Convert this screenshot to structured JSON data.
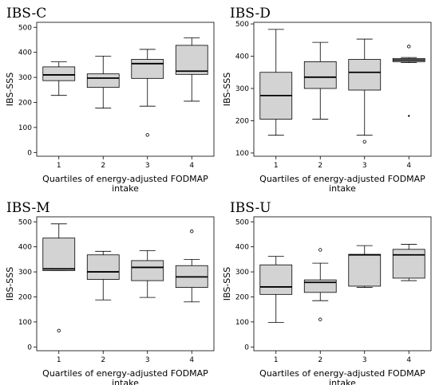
{
  "chart_data": [
    {
      "type": "box",
      "title": "IBS-C",
      "xlabel": "Quartiles of energy-adjusted FODMAP intake",
      "ylabel": "IBS-SSS",
      "ylim": [
        -15,
        520
      ],
      "yticks": [
        0,
        100,
        200,
        300,
        400,
        500
      ],
      "categories": [
        "1",
        "2",
        "3",
        "4"
      ],
      "boxes": [
        {
          "min": 228,
          "q1": 287,
          "median": 310,
          "q3": 342,
          "max": 362,
          "outliers": [],
          "extremes": []
        },
        {
          "min": 177,
          "q1": 260,
          "median": 297,
          "q3": 314,
          "max": 385,
          "outliers": [],
          "extremes": []
        },
        {
          "min": 185,
          "q1": 296,
          "median": 355,
          "q3": 372,
          "max": 412,
          "outliers": [
            70
          ],
          "extremes": []
        },
        {
          "min": 205,
          "q1": 312,
          "median": 325,
          "q3": 428,
          "max": 458,
          "outliers": [],
          "extremes": []
        }
      ]
    },
    {
      "type": "box",
      "title": "IBS-D",
      "xlabel": "Quartiles of energy-adjusted FODMAP intake",
      "ylabel": "IBS-SSS",
      "ylim": [
        90,
        505
      ],
      "yticks": [
        100,
        200,
        300,
        400,
        500
      ],
      "categories": [
        "1",
        "2",
        "3",
        "4"
      ],
      "boxes": [
        {
          "min": 155,
          "q1": 205,
          "median": 278,
          "q3": 350,
          "max": 483,
          "outliers": [],
          "extremes": []
        },
        {
          "min": 205,
          "q1": 300,
          "median": 335,
          "q3": 383,
          "max": 443,
          "outliers": [],
          "extremes": []
        },
        {
          "min": 155,
          "q1": 295,
          "median": 350,
          "q3": 390,
          "max": 453,
          "outliers": [
            135
          ],
          "extremes": []
        },
        {
          "min": 380,
          "q1": 383,
          "median": 388,
          "q3": 393,
          "max": 396,
          "outliers": [
            430
          ],
          "extremes": [
            215
          ]
        }
      ]
    },
    {
      "type": "box",
      "title": "IBS-M",
      "xlabel": "Quartiles of energy-adjusted FODMAP intake",
      "ylabel": "IBS-SSS",
      "ylim": [
        -15,
        520
      ],
      "yticks": [
        0,
        100,
        200,
        300,
        400,
        500
      ],
      "categories": [
        "1",
        "2",
        "3",
        "4"
      ],
      "boxes": [
        {
          "min": 305,
          "q1": 305,
          "median": 312,
          "q3": 435,
          "max": 492,
          "outliers": [
            65
          ],
          "extremes": []
        },
        {
          "min": 188,
          "q1": 270,
          "median": 300,
          "q3": 368,
          "max": 382,
          "outliers": [],
          "extremes": []
        },
        {
          "min": 198,
          "q1": 265,
          "median": 318,
          "q3": 345,
          "max": 385,
          "outliers": [],
          "extremes": []
        },
        {
          "min": 180,
          "q1": 238,
          "median": 280,
          "q3": 325,
          "max": 350,
          "outliers": [
            462
          ],
          "extremes": []
        }
      ]
    },
    {
      "type": "box",
      "title": "IBS-U",
      "xlabel": "Quartiles of energy-adjusted FODMAP intake",
      "ylabel": "IBS-SSS",
      "ylim": [
        -15,
        520
      ],
      "yticks": [
        0,
        100,
        200,
        300,
        400,
        500
      ],
      "categories": [
        "1",
        "2",
        "3",
        "4"
      ],
      "boxes": [
        {
          "min": 98,
          "q1": 210,
          "median": 240,
          "q3": 328,
          "max": 362,
          "outliers": [],
          "extremes": []
        },
        {
          "min": 185,
          "q1": 218,
          "median": 258,
          "q3": 268,
          "max": 335,
          "outliers": [
            388,
            110
          ],
          "extremes": []
        },
        {
          "min": 238,
          "q1": 243,
          "median": 368,
          "q3": 370,
          "max": 405,
          "outliers": [],
          "extremes": []
        },
        {
          "min": 265,
          "q1": 275,
          "median": 368,
          "q3": 390,
          "max": 410,
          "outliers": [],
          "extremes": []
        }
      ]
    }
  ]
}
